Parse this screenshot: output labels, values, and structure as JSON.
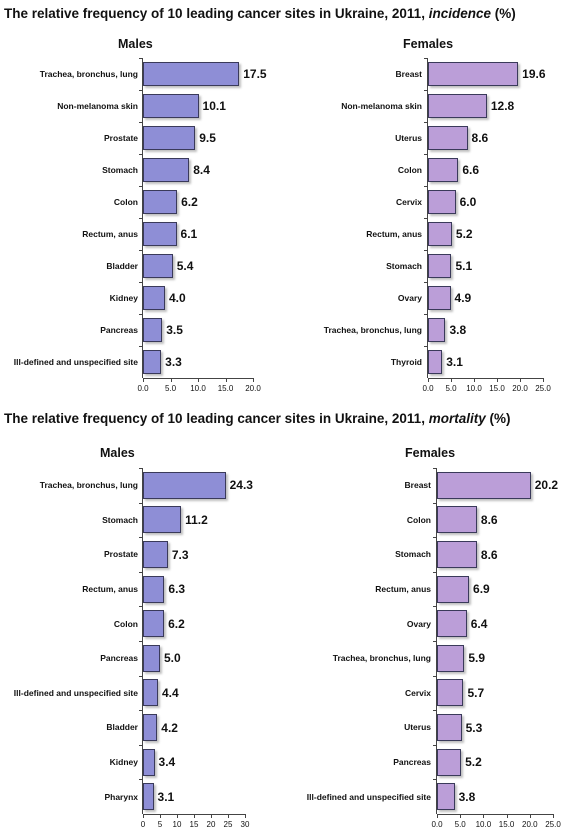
{
  "sections": [
    {
      "title_prefix": "The relative frequency of 10 leading cancer sites in Ukraine, 2011,",
      "title_emphasis": "incidence",
      "title_suffix": "(%)"
    },
    {
      "title_prefix": "The relative frequency of 10 leading cancer sites in Ukraine, 2011,",
      "title_emphasis": "mortality",
      "title_suffix": "(%)"
    }
  ],
  "chart_data": [
    {
      "type": "bar",
      "orientation": "horizontal",
      "title": "Males",
      "color": "#8e8ed6",
      "categories": [
        "Trachea, bronchus, lung",
        "Non-melanoma skin",
        "Prostate",
        "Stomach",
        "Colon",
        "Rectum, anus",
        "Bladder",
        "Kidney",
        "Pancreas",
        "Ill-defined and unspecified site"
      ],
      "values": [
        17.5,
        10.1,
        9.5,
        8.4,
        6.2,
        6.1,
        5.4,
        4.0,
        3.5,
        3.3
      ],
      "value_labels": [
        "17.5",
        "10.1",
        "9.5",
        "8.4",
        "6.2",
        "6.1",
        "5.4",
        "4.0",
        "3.5",
        "3.3"
      ],
      "xlim": [
        0,
        20
      ],
      "xticks": [
        {
          "value": 0,
          "label": "0.0"
        },
        {
          "value": 5,
          "label": "5.0"
        },
        {
          "value": 10,
          "label": "10.0"
        },
        {
          "value": 15,
          "label": "15.0"
        },
        {
          "value": 20,
          "label": "20.0"
        }
      ]
    },
    {
      "type": "bar",
      "orientation": "horizontal",
      "title": "Females",
      "color": "#bb9ed8",
      "categories": [
        "Breast",
        "Non-melanoma skin",
        "Uterus",
        "Colon",
        "Cervix",
        "Rectum, anus",
        "Stomach",
        "Ovary",
        "Trachea, bronchus, lung",
        "Thyroid"
      ],
      "values": [
        19.6,
        12.8,
        8.6,
        6.6,
        6.0,
        5.2,
        5.1,
        4.9,
        3.8,
        3.1
      ],
      "value_labels": [
        "19.6",
        "12.8",
        "8.6",
        "6.6",
        "6.0",
        "5.2",
        "5.1",
        "4.9",
        "3.8",
        "3.1"
      ],
      "xlim": [
        0,
        25
      ],
      "xticks": [
        {
          "value": 0,
          "label": "0.0"
        },
        {
          "value": 5,
          "label": "5.0"
        },
        {
          "value": 10,
          "label": "10.0"
        },
        {
          "value": 15,
          "label": "15.0"
        },
        {
          "value": 20,
          "label": "20.0"
        },
        {
          "value": 25,
          "label": "25.0"
        }
      ]
    },
    {
      "type": "bar",
      "orientation": "horizontal",
      "title": "Males",
      "color": "#8e8ed6",
      "categories": [
        "Trachea, bronchus, lung",
        "Stomach",
        "Prostate",
        "Rectum, anus",
        "Colon",
        "Pancreas",
        "Ill-defined and unspecified site",
        "Bladder",
        "Kidney",
        "Pharynx"
      ],
      "values": [
        24.3,
        11.2,
        7.3,
        6.3,
        6.2,
        5.0,
        4.4,
        4.2,
        3.4,
        3.1
      ],
      "value_labels": [
        "24.3",
        "11.2",
        "7.3",
        "6.3",
        "6.2",
        "5.0",
        "4.4",
        "4.2",
        "3.4",
        "3.1"
      ],
      "xlim": [
        0,
        30
      ],
      "xticks": [
        0,
        5,
        10,
        15,
        20,
        25,
        30
      ]
    },
    {
      "type": "bar",
      "orientation": "horizontal",
      "title": "Females",
      "color": "#bb9ed8",
      "categories": [
        "Breast",
        "Colon",
        "Stomach",
        "Rectum, anus",
        "Ovary",
        "Trachea, bronchus, lung",
        "Cervix",
        "Uterus",
        "Pancreas",
        "Ill-defined and unspecified site"
      ],
      "values": [
        20.2,
        8.6,
        8.6,
        6.9,
        6.4,
        5.9,
        5.7,
        5.3,
        5.2,
        3.8
      ],
      "value_labels": [
        "20.2",
        "8.6",
        "8.6",
        "6.9",
        "6.4",
        "5.9",
        "5.7",
        "5.3",
        "5.2",
        "3.8"
      ],
      "xlim": [
        0,
        25
      ],
      "xticks": [
        {
          "value": 0,
          "label": "0.0"
        },
        {
          "value": 5,
          "label": "5.0"
        },
        {
          "value": 10,
          "label": "10.0"
        },
        {
          "value": 15,
          "label": "15.0"
        },
        {
          "value": 20,
          "label": "20.0"
        },
        {
          "value": 25,
          "label": "25.0"
        }
      ]
    }
  ]
}
